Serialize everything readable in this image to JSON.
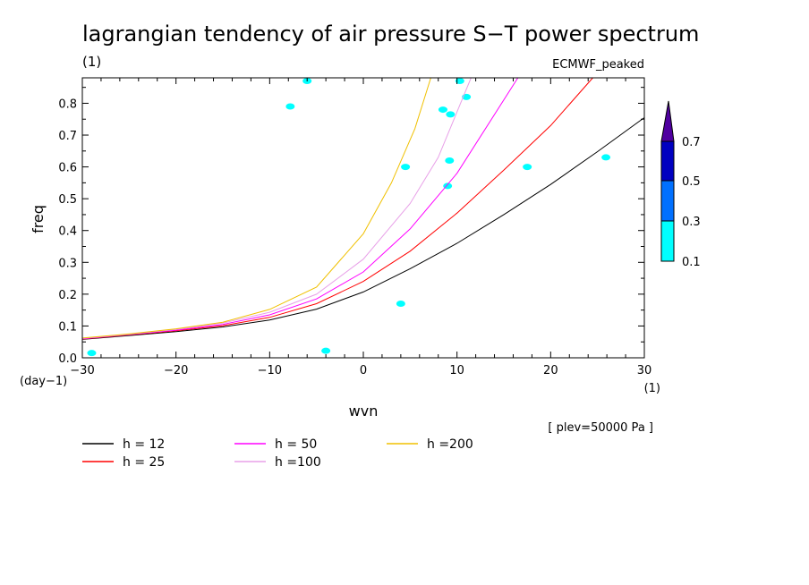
{
  "chart_data": {
    "type": "line",
    "title": "lagrangian tendency of air pressure S−T power spectrum",
    "subtitle_left": "(1)",
    "subtitle_right": "ECMWF_peaked",
    "xlabel": "wvn",
    "ylabel": "freq",
    "x_unit": "(1)",
    "y_unit": "(day−1)",
    "xlim": [
      -30,
      30
    ],
    "ylim": [
      0,
      0.88
    ],
    "x_ticks": [
      "−30",
      "−20",
      "−10",
      "0",
      "10",
      "20",
      "30"
    ],
    "x_tick_values": [
      -30,
      -20,
      -10,
      0,
      10,
      20,
      30
    ],
    "y_ticks": [
      "0.0",
      "0.1",
      "0.2",
      "0.3",
      "0.4",
      "0.5",
      "0.6",
      "0.7",
      "0.8"
    ],
    "y_tick_values": [
      0,
      0.1,
      0.2,
      0.3,
      0.4,
      0.5,
      0.6,
      0.7,
      0.8
    ],
    "annotation": "[ plev=50000 Pa ]",
    "series": [
      {
        "name": "h = 12",
        "color": "#000000",
        "x": [
          -30,
          -25,
          -20,
          -15,
          -10,
          -5,
          0,
          5,
          10,
          15,
          20,
          25,
          30
        ],
        "y": [
          0.058,
          0.07,
          0.082,
          0.097,
          0.119,
          0.153,
          0.207,
          0.28,
          0.36,
          0.45,
          0.545,
          0.648,
          0.755
        ]
      },
      {
        "name": "h = 25",
        "color": "#ff0000",
        "x": [
          -30,
          -25,
          -20,
          -15,
          -10,
          -5,
          0,
          5,
          10,
          15,
          20,
          24.5
        ],
        "y": [
          0.059,
          0.072,
          0.085,
          0.101,
          0.127,
          0.17,
          0.24,
          0.335,
          0.455,
          0.59,
          0.73,
          0.88
        ]
      },
      {
        "name": "h = 50",
        "color": "#ff00ff",
        "x": [
          -30,
          -25,
          -20,
          -15,
          -10,
          -5,
          0,
          5,
          10,
          16.5
        ],
        "y": [
          0.06,
          0.073,
          0.087,
          0.105,
          0.135,
          0.185,
          0.27,
          0.405,
          0.58,
          0.88
        ]
      },
      {
        "name": "h =100",
        "color": "#e8a0e8",
        "x": [
          -30,
          -25,
          -20,
          -15,
          -10,
          -5,
          0,
          5,
          8,
          11.5
        ],
        "y": [
          0.061,
          0.074,
          0.089,
          0.109,
          0.143,
          0.2,
          0.31,
          0.485,
          0.63,
          0.88
        ]
      },
      {
        "name": "h =200",
        "color": "#f0c000",
        "x": [
          -30,
          -25,
          -20,
          -15,
          -10,
          -5,
          0,
          3,
          5.5,
          7.2
        ],
        "y": [
          0.062,
          0.075,
          0.091,
          0.112,
          0.152,
          0.222,
          0.39,
          0.55,
          0.72,
          0.88
        ]
      }
    ],
    "shaded_patches": [
      {
        "x": 4.5,
        "y": 0.6,
        "level": "0.1"
      },
      {
        "x": 8.5,
        "y": 0.78,
        "level": "0.1"
      },
      {
        "x": 11.0,
        "y": 0.82,
        "level": "0.1"
      },
      {
        "x": 10.3,
        "y": 0.87,
        "level": "0.1"
      },
      {
        "x": 9.3,
        "y": 0.765,
        "level": "0.1"
      },
      {
        "x": -6.0,
        "y": 0.87,
        "level": "0.1"
      },
      {
        "x": -7.8,
        "y": 0.79,
        "level": "0.1"
      },
      {
        "x": -29.0,
        "y": 0.015,
        "level": "0.1"
      },
      {
        "x": 4.0,
        "y": 0.17,
        "level": "0.1"
      },
      {
        "x": 17.5,
        "y": 0.6,
        "level": "0.1"
      },
      {
        "x": 25.9,
        "y": 0.63,
        "level": "0.1"
      },
      {
        "x": 9.2,
        "y": 0.62,
        "level": "0.1"
      },
      {
        "x": 9.0,
        "y": 0.54,
        "level": "0.1"
      },
      {
        "x": -4.0,
        "y": 0.022,
        "level": "0.1"
      }
    ],
    "colorbar": {
      "labels": [
        "0.1",
        "0.3",
        "0.5",
        "0.7"
      ],
      "colors": [
        "#00ffff",
        "#0070ff",
        "#0000c0",
        "#5000a0"
      ]
    }
  }
}
